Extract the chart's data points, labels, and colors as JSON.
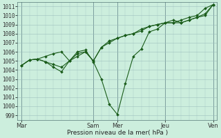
{
  "background_color": "#cceedd",
  "grid_color": "#99bbbb",
  "line_color": "#1a5c1a",
  "marker_color": "#1a5c1a",
  "xlabel_text": "Pression niveau de la mer( hPa )",
  "ylim": [
    998.5,
    1011.5
  ],
  "ytick_values": [
    999,
    1000,
    1001,
    1002,
    1003,
    1004,
    1005,
    1006,
    1007,
    1008,
    1009,
    1010,
    1011
  ],
  "xtick_labels": [
    "Mar",
    "Sam",
    "Mer",
    "Jeu",
    "Ven"
  ],
  "xtick_positions": [
    0,
    9,
    12,
    18,
    24
  ],
  "series1_x": [
    0,
    1,
    2,
    3,
    4,
    5,
    6,
    7,
    8,
    9,
    10,
    11,
    12,
    13,
    14,
    15,
    16,
    17,
    18,
    19,
    20,
    21,
    22,
    23,
    24
  ],
  "series1_y": [
    1004.5,
    1005.1,
    1005.2,
    1004.9,
    1004.6,
    1004.3,
    1005.0,
    1005.8,
    1006.0,
    1005.0,
    1006.5,
    1007.0,
    1007.5,
    1007.8,
    1008.0,
    1008.5,
    1008.8,
    1009.0,
    1009.2,
    1009.2,
    1009.5,
    1009.8,
    1010.0,
    1010.8,
    1011.2
  ],
  "series2_x": [
    0,
    1,
    2,
    3,
    4,
    5,
    6,
    7,
    8,
    9,
    10,
    11,
    12,
    13,
    14,
    15,
    16,
    17,
    18,
    19,
    20,
    21,
    22,
    23,
    24
  ],
  "series2_y": [
    1004.5,
    1005.1,
    1005.2,
    1004.9,
    1004.3,
    1003.8,
    1005.0,
    1006.0,
    1006.2,
    1004.9,
    1003.0,
    1000.2,
    999.1,
    1002.5,
    1005.5,
    1006.3,
    1008.2,
    1008.5,
    1009.2,
    1009.5,
    1009.2,
    1009.5,
    1009.8,
    1010.2,
    1011.2
  ],
  "series3_x": [
    0,
    1,
    2,
    3,
    4,
    5,
    6,
    7,
    8,
    9,
    10,
    11,
    12,
    13,
    14,
    15,
    16,
    17,
    18,
    19,
    20,
    21,
    22,
    23,
    24
  ],
  "series3_y": [
    1004.5,
    1005.1,
    1005.2,
    1005.5,
    1005.8,
    1006.0,
    1005.0,
    1005.5,
    1006.0,
    1005.0,
    1006.5,
    1007.2,
    1007.5,
    1007.8,
    1008.0,
    1008.3,
    1008.8,
    1009.0,
    1009.2,
    1009.2,
    1009.2,
    1009.5,
    1009.8,
    1010.0,
    1011.2
  ],
  "figsize": [
    3.2,
    2.0
  ],
  "dpi": 100
}
